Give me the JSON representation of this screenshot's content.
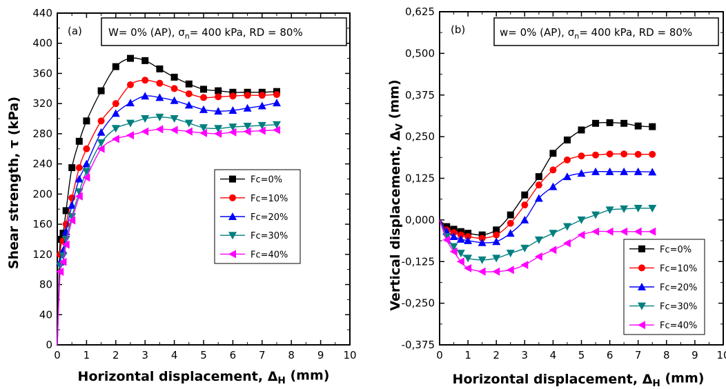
{
  "colors": {
    "Fc=0%": "#000000",
    "Fc=10%": "#ff0000",
    "Fc=20%": "#0000ff",
    "Fc=30%": "#007f7f",
    "Fc=40%": "#ff00ff"
  },
  "chart_data": [
    {
      "type": "line",
      "panel_label": "(a)",
      "condition_parts": [
        "W= 0% (AP), ",
        "σ",
        "n",
        "= 400 kPa, RD = 80%"
      ],
      "xlabel_parts": [
        "Horizontal displacement, ",
        "Δ",
        "H",
        " (mm)"
      ],
      "ylabel_parts": [
        "Shear strength, ",
        "τ",
        " (kPa)"
      ],
      "xlim": [
        0,
        10
      ],
      "ylim": [
        0,
        440
      ],
      "xticks": [
        "0",
        "1",
        "2",
        "3",
        "4",
        "5",
        "6",
        "7",
        "8",
        "9",
        "10"
      ],
      "yticks": [
        "0",
        "40",
        "80",
        "120",
        "160",
        "200",
        "240",
        "280",
        "320",
        "360",
        "400",
        "440"
      ],
      "legend_position": "center-right",
      "series": [
        {
          "name": "Fc=0%",
          "color": "#000000",
          "marker": "square",
          "x": [
            0,
            0.1,
            0.2,
            0.3,
            0.5,
            0.75,
            1,
            1.5,
            2,
            2.5,
            3,
            3.5,
            4,
            4.5,
            5,
            5.5,
            6,
            6.5,
            7,
            7.5
          ],
          "y": [
            0,
            140,
            148,
            178,
            235,
            270,
            297,
            337,
            369,
            380,
            377,
            366,
            355,
            346,
            339,
            337,
            335,
            335,
            335,
            336
          ]
        },
        {
          "name": "Fc=10%",
          "color": "#ff0000",
          "marker": "circle",
          "x": [
            0,
            0.1,
            0.2,
            0.3,
            0.5,
            0.75,
            1,
            1.5,
            2,
            2.5,
            3,
            3.5,
            4,
            4.5,
            5,
            5.5,
            6,
            6.5,
            7,
            7.5
          ],
          "y": [
            0,
            120,
            138,
            160,
            195,
            235,
            260,
            297,
            320,
            345,
            351,
            347,
            340,
            333,
            328,
            329,
            330,
            331,
            331,
            332
          ]
        },
        {
          "name": "Fc=20%",
          "color": "#0000ff",
          "marker": "triangle-up",
          "x": [
            0,
            0.1,
            0.2,
            0.3,
            0.5,
            0.75,
            1,
            1.5,
            2,
            2.5,
            3,
            3.5,
            4,
            4.5,
            5,
            5.5,
            6,
            6.5,
            7,
            7.5
          ],
          "y": [
            0,
            110,
            125,
            150,
            185,
            220,
            240,
            282,
            307,
            321,
            330,
            328,
            324,
            318,
            312,
            310,
            311,
            314,
            317,
            321
          ]
        },
        {
          "name": "Fc=30%",
          "color": "#007f7f",
          "marker": "triangle-down",
          "x": [
            0,
            0.1,
            0.2,
            0.3,
            0.5,
            0.75,
            1,
            1.5,
            2,
            2.5,
            3,
            3.5,
            4,
            4.5,
            5,
            5.5,
            6,
            6.5,
            7,
            7.5
          ],
          "y": [
            0,
            105,
            118,
            140,
            170,
            203,
            230,
            268,
            287,
            294,
            300,
            302,
            300,
            294,
            288,
            287,
            289,
            290,
            291,
            292
          ]
        },
        {
          "name": "Fc=40%",
          "color": "#ff00ff",
          "marker": "triangle-left",
          "x": [
            0,
            0.1,
            0.2,
            0.3,
            0.5,
            0.75,
            1,
            1.5,
            2,
            2.5,
            3,
            3.5,
            4,
            4.5,
            5,
            5.5,
            6,
            6.5,
            7,
            7.5
          ],
          "y": [
            0,
            97,
            110,
            133,
            165,
            197,
            222,
            260,
            273,
            278,
            283,
            286,
            285,
            283,
            281,
            280,
            282,
            283,
            284,
            285
          ]
        }
      ]
    },
    {
      "type": "line",
      "panel_label": "(b)",
      "condition_parts": [
        "w= 0% (AP), ",
        "σ",
        "n",
        "= 400 kPa, RD = 80%"
      ],
      "xlabel_parts": [
        "Horizontal displacement, ",
        "Δ",
        "H",
        " (mm)"
      ],
      "ylabel_parts": [
        "Vertical displacement,   ",
        "Δ",
        "V",
        " (mm)"
      ],
      "xlim": [
        0,
        10
      ],
      "ylim": [
        -0.375,
        0.625
      ],
      "xticks": [
        "0",
        "1",
        "2",
        "3",
        "4",
        "5",
        "6",
        "7",
        "8",
        "9",
        "10"
      ],
      "yticks": [
        "-0,375",
        "-0,250",
        "-0,125",
        "0,000",
        "0,125",
        "0,250",
        "0,375",
        "0,500",
        "0,625"
      ],
      "legend_position": "bottom-right",
      "series": [
        {
          "name": "Fc=0%",
          "color": "#000000",
          "marker": "square",
          "x": [
            0,
            0.25,
            0.5,
            0.75,
            1,
            1.5,
            2,
            2.5,
            3,
            3.5,
            4,
            4.5,
            5,
            5.5,
            6,
            6.5,
            7,
            7.5
          ],
          "y": [
            0,
            -0.02,
            -0.028,
            -0.035,
            -0.04,
            -0.045,
            -0.03,
            0.015,
            0.075,
            0.13,
            0.2,
            0.24,
            0.27,
            0.29,
            0.292,
            0.29,
            0.282,
            0.28
          ]
        },
        {
          "name": "Fc=10%",
          "color": "#ff0000",
          "marker": "circle",
          "x": [
            0,
            0.25,
            0.5,
            0.75,
            1,
            1.5,
            2,
            2.5,
            3,
            3.5,
            4,
            4.5,
            5,
            5.5,
            6,
            6.5,
            7,
            7.5
          ],
          "y": [
            0,
            -0.03,
            -0.038,
            -0.045,
            -0.05,
            -0.055,
            -0.045,
            -0.01,
            0.045,
            0.105,
            0.15,
            0.18,
            0.192,
            0.195,
            0.198,
            0.198,
            0.197,
            0.197
          ]
        },
        {
          "name": "Fc=20%",
          "color": "#0000ff",
          "marker": "triangle-up",
          "x": [
            0,
            0.25,
            0.5,
            0.75,
            1,
            1.5,
            2,
            2.5,
            3,
            3.5,
            4,
            4.5,
            5,
            5.5,
            6,
            6.5,
            7,
            7.5
          ],
          "y": [
            0,
            -0.035,
            -0.05,
            -0.058,
            -0.062,
            -0.068,
            -0.065,
            -0.04,
            0,
            0.065,
            0.1,
            0.13,
            0.14,
            0.145,
            0.145,
            0.145,
            0.145,
            0.144
          ]
        },
        {
          "name": "Fc=30%",
          "color": "#007f7f",
          "marker": "triangle-down",
          "x": [
            0,
            0.25,
            0.5,
            0.75,
            1,
            1.5,
            2,
            2.5,
            3,
            3.5,
            4,
            4.5,
            5,
            5.5,
            6,
            6.5,
            7,
            7.5
          ],
          "y": [
            0,
            -0.05,
            -0.08,
            -0.1,
            -0.115,
            -0.12,
            -0.115,
            -0.1,
            -0.085,
            -0.06,
            -0.04,
            -0.02,
            0,
            0.015,
            0.03,
            0.033,
            0.035,
            0.035
          ]
        },
        {
          "name": "Fc=40%",
          "color": "#ff00ff",
          "marker": "triangle-left",
          "x": [
            0,
            0.25,
            0.5,
            0.75,
            1,
            1.5,
            2,
            2.5,
            3,
            3.5,
            4,
            4.5,
            5,
            5.5,
            6,
            6.5,
            7,
            7.5
          ],
          "y": [
            0,
            -0.06,
            -0.095,
            -0.125,
            -0.145,
            -0.155,
            -0.155,
            -0.15,
            -0.135,
            -0.11,
            -0.09,
            -0.07,
            -0.045,
            -0.035,
            -0.035,
            -0.035,
            -0.035,
            -0.035
          ]
        }
      ]
    }
  ]
}
